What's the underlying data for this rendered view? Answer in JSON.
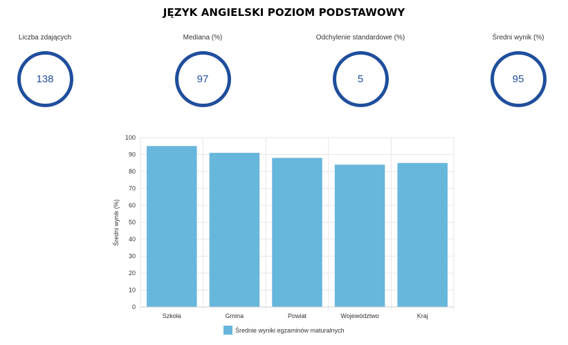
{
  "title": "JĘZYK ANGIELSKI POZIOM PODSTAWOWY",
  "stats": [
    {
      "label": "Liczba zdających",
      "value": "138"
    },
    {
      "label": "Mediana (%)",
      "value": "97"
    },
    {
      "label": "Odchylenie standardowe (%)",
      "value": "5"
    },
    {
      "label": "Średni wynik (%)",
      "value": "95"
    }
  ],
  "colors": {
    "accent": "#1f4e9c",
    "bar": "#67b6dc",
    "grid": "#e6e6e6"
  },
  "chart_data": {
    "type": "bar",
    "categories": [
      "Szkoła",
      "Gmina",
      "Powiat",
      "Województwo",
      "Kraj"
    ],
    "series": [
      {
        "name": "Średnie wyniki egzaminów maturalnych",
        "values": [
          95,
          91,
          88,
          84,
          85
        ]
      }
    ],
    "ylabel": "Średni wynik (%)",
    "xlabel": "",
    "ylim": [
      0,
      100
    ],
    "yticks": [
      0,
      10,
      20,
      30,
      40,
      50,
      60,
      70,
      80,
      90,
      100
    ],
    "grid": true,
    "legend": "bottom"
  }
}
